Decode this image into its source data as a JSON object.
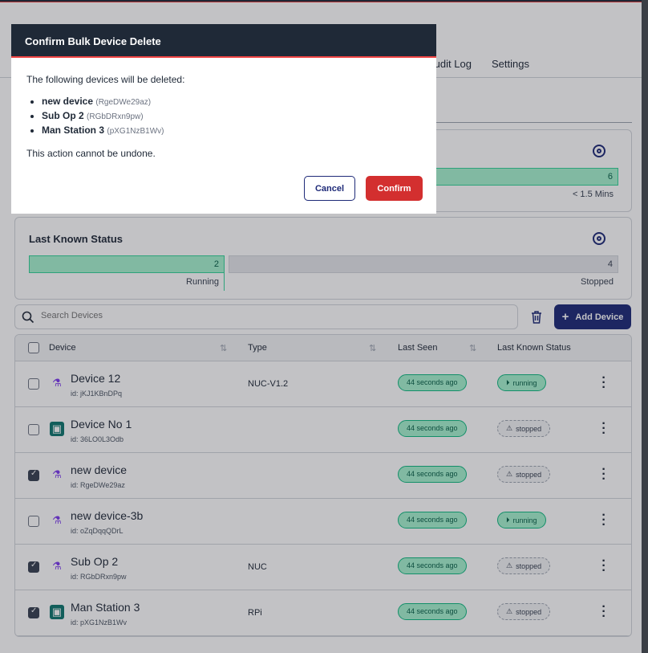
{
  "nav": {
    "tabs": [
      "Audit Log",
      "Settings"
    ]
  },
  "cards": {
    "last_seen": {
      "bar_value": "6",
      "bar_label": "< 1.5 Mins"
    },
    "status": {
      "title": "Last Known Status",
      "running_count": "2",
      "running_label": "Running",
      "stopped_count": "4",
      "stopped_label": "Stopped"
    }
  },
  "toolbar": {
    "search_placeholder": "Search Devices",
    "add_label": "Add Device"
  },
  "table": {
    "headers": [
      "Device",
      "Type",
      "Last Seen",
      "Last Known Status"
    ],
    "rows": [
      {
        "name": "Device 12",
        "id": "id: jKJ1KBnDPq",
        "type": "NUC-V1.2",
        "seen": "44 seconds ago",
        "status": "running",
        "icon": "flask-icon",
        "checked": false
      },
      {
        "name": "Device No 1",
        "id": "id: 36LO0L3Odb",
        "type": "",
        "seen": "44 seconds ago",
        "status": "stopped",
        "icon": "chip-icon",
        "checked": false
      },
      {
        "name": "new device",
        "id": "id: RgeDWe29az",
        "type": "",
        "seen": "44 seconds ago",
        "status": "stopped",
        "icon": "flask-icon",
        "checked": true
      },
      {
        "name": "new device-3b",
        "id": "id: oZqDqqQDrL",
        "type": "",
        "seen": "44 seconds ago",
        "status": "running",
        "icon": "flask-icon",
        "checked": false
      },
      {
        "name": "Sub Op 2",
        "id": "id: RGbDRxn9pw",
        "type": "NUC",
        "seen": "44 seconds ago",
        "status": "stopped",
        "icon": "flask-icon",
        "checked": true
      },
      {
        "name": "Man Station 3",
        "id": "id: pXG1NzB1Wv",
        "type": "RPi",
        "seen": "44 seconds ago",
        "status": "stopped",
        "icon": "chip-icon",
        "checked": true
      }
    ]
  },
  "modal": {
    "title": "Confirm Bulk Device Delete",
    "intro": "The following devices will be deleted:",
    "items": [
      {
        "name": "new device",
        "id": "(RgeDWe29az)"
      },
      {
        "name": "Sub Op 2",
        "id": "(RGbDRxn9pw)"
      },
      {
        "name": "Man Station 3",
        "id": "(pXG1NzB1Wv)"
      }
    ],
    "warning": "This action cannot be undone.",
    "cancel": "Cancel",
    "confirm": "Confirm"
  },
  "colors": {
    "primary": "#1e2a78",
    "danger": "#d32f2f",
    "running": "#a7f3d0",
    "header": "#1f2937"
  }
}
